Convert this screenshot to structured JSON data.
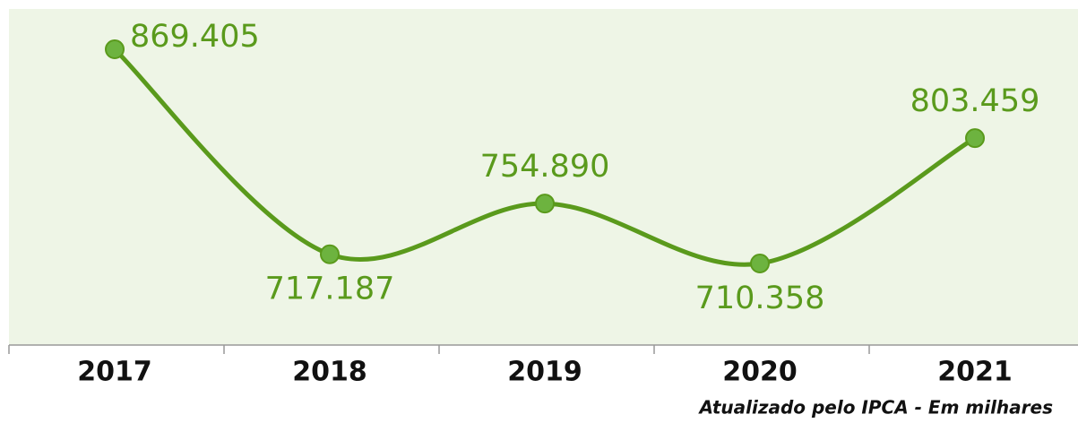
{
  "chart_data": {
    "type": "line",
    "categories": [
      "2017",
      "2018",
      "2019",
      "2020",
      "2021"
    ],
    "values": [
      869405,
      717187,
      754890,
      710358,
      803459
    ],
    "value_labels": [
      "869.405",
      "717.187",
      "754.890",
      "710.358",
      "803.459"
    ],
    "color": "#5a9a1c",
    "marker_color": "#6db33f",
    "note": "Atualizado pelo IPCA - Em milhares"
  }
}
